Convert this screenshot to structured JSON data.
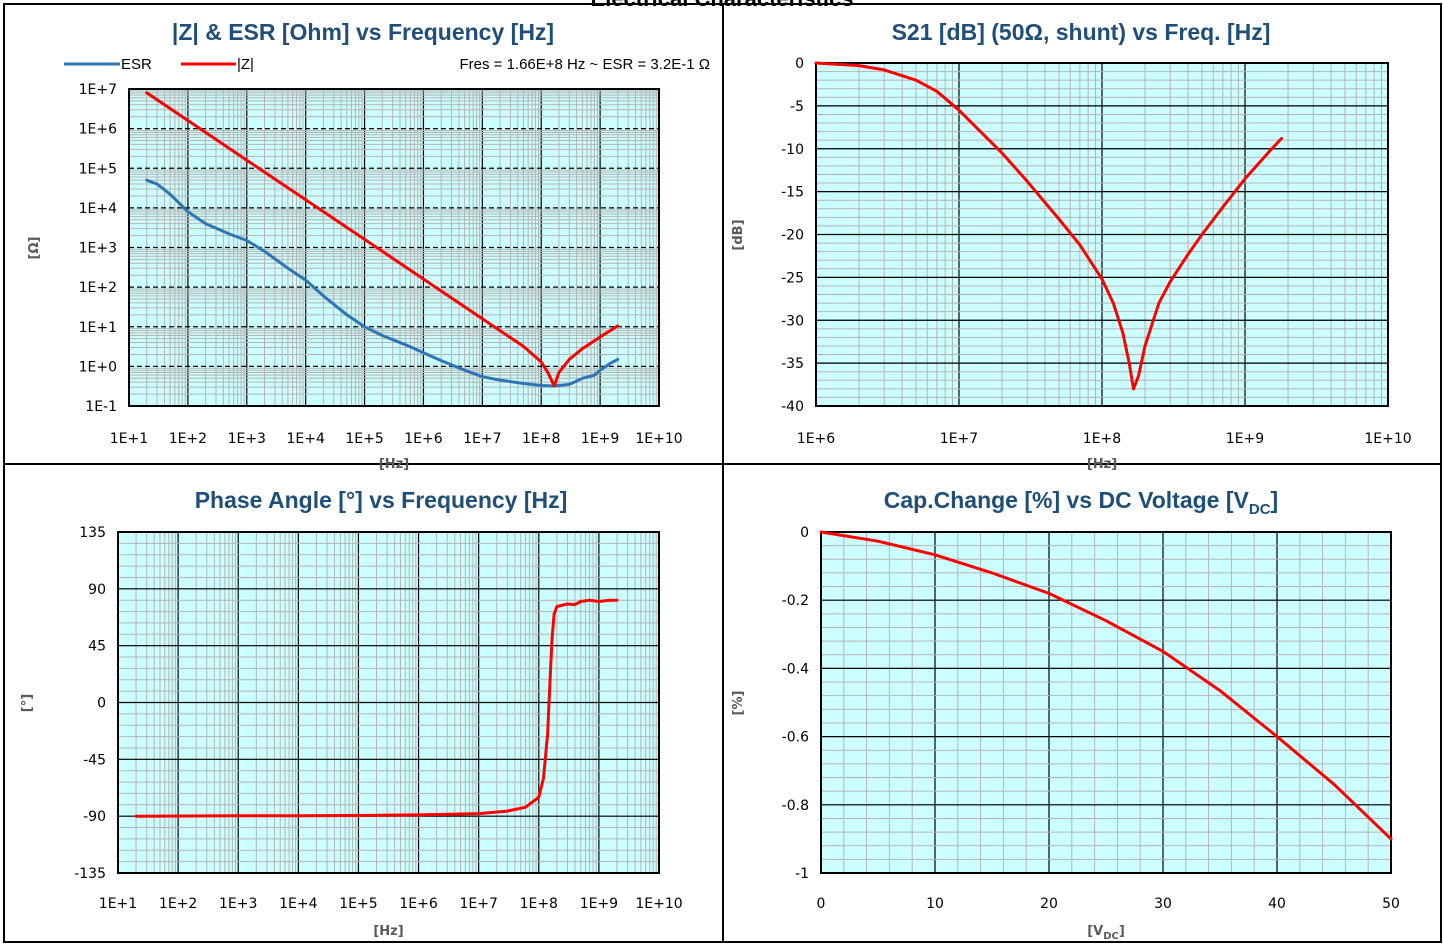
{
  "page_title": "Electrical Characteristics",
  "colors": {
    "title": "#1f4e79",
    "plot_bg": "#ccffff",
    "esr": "#2e75b6",
    "z": "#ff0000",
    "grid_minor": "#b4b4b4",
    "grid_major": "#000000"
  },
  "chart_data": [
    {
      "type": "line",
      "title": "|Z| & ESR [Ohm] vs Frequency [Hz]",
      "xlabel": "[Hz]",
      "ylabel": "[Ω]",
      "xscale": "log",
      "yscale": "log",
      "xlim": [
        10,
        10000000000.0
      ],
      "ylim": [
        0.1,
        10000000.0
      ],
      "xticks": [
        "1E+1",
        "1E+2",
        "1E+3",
        "1E+4",
        "1E+5",
        "1E+6",
        "1E+7",
        "1E+8",
        "1E+9",
        "1E+10"
      ],
      "yticks": [
        "1E-1",
        "1E+0",
        "1E+1",
        "1E+2",
        "1E+3",
        "1E+4",
        "1E+5",
        "1E+6",
        "1E+7"
      ],
      "grid": true,
      "legend": "top",
      "annotation": "Fres = 1.66E+8 Hz ~ ESR = 3.2E-1 Ω",
      "series": [
        {
          "name": "ESR",
          "color": "#2e75b6",
          "x": [
            20,
            30,
            50,
            100,
            200,
            500,
            1000,
            2000,
            5000,
            10000,
            20000,
            50000,
            100000,
            200000,
            500000,
            1000000.0,
            2000000.0,
            5000000.0,
            10000000.0,
            20000000.0,
            50000000.0,
            100000000.0,
            166000000.0,
            200000000.0,
            300000000.0,
            500000000.0,
            800000000.0,
            1000000000.0,
            1500000000.0,
            2000000000.0
          ],
          "y": [
            50000,
            40000,
            22000,
            8000,
            4000,
            2200,
            1500,
            800,
            300,
            150,
            60,
            20,
            10,
            6,
            3.5,
            2.2,
            1.4,
            0.8,
            0.55,
            0.45,
            0.37,
            0.33,
            0.32,
            0.33,
            0.35,
            0.5,
            0.6,
            0.8,
            1.2,
            1.5
          ]
        },
        {
          "name": "|Z|",
          "color": "#ff0000",
          "x": [
            20,
            100.0,
            1000.0,
            10000.0,
            100000.0,
            1000000.0,
            10000000.0,
            50000000.0,
            100000000.0,
            130000000.0,
            166000000.0,
            200000000.0,
            300000000.0,
            500000000.0,
            1000000000.0,
            2000000000.0
          ],
          "y": [
            8000000,
            1600000,
            160000,
            16000,
            1600,
            160,
            16,
            3.2,
            1.3,
            0.7,
            0.32,
            0.7,
            1.5,
            2.8,
            5.5,
            10.5
          ]
        }
      ]
    },
    {
      "type": "line",
      "title": "S21 [dB] (50Ω, shunt) vs Freq. [Hz]",
      "xlabel": "[Hz]",
      "ylabel": "[dB]",
      "xscale": "log",
      "xlim": [
        1000000.0,
        10000000000.0
      ],
      "ylim": [
        -40,
        0
      ],
      "xticks": [
        "1E+6",
        "1E+7",
        "1E+8",
        "1E+9",
        "1E+10"
      ],
      "yticks": [
        "0",
        "-5",
        "-10",
        "-15",
        "-20",
        "-25",
        "-30",
        "-35",
        "-40"
      ],
      "grid": true,
      "series": [
        {
          "color": "#ff0000",
          "x": [
            1000000.0,
            2000000.0,
            3000000.0,
            5000000.0,
            7000000.0,
            10000000.0,
            20000000.0,
            30000000.0,
            50000000.0,
            70000000.0,
            100000000.0,
            120000000.0,
            140000000.0,
            155000000.0,
            166000000.0,
            180000000.0,
            200000000.0,
            250000000.0,
            300000000.0,
            400000000.0,
            500000000.0,
            700000000.0,
            1000000000.0,
            1500000000.0,
            1800000000.0
          ],
          "y": [
            0,
            -0.3,
            -0.8,
            -2,
            -3.3,
            -5.5,
            -10.5,
            -13.8,
            -18.2,
            -21.2,
            -25.2,
            -28,
            -31.5,
            -35,
            -38,
            -36.5,
            -33,
            -28,
            -25.5,
            -22.3,
            -20,
            -16.8,
            -13.5,
            -10.2,
            -8.8
          ]
        }
      ]
    },
    {
      "type": "line",
      "title": "Phase Angle [°] vs Frequency [Hz]",
      "xlabel": "[Hz]",
      "ylabel": "[°]",
      "xscale": "log",
      "xlim": [
        10,
        10000000000.0
      ],
      "ylim": [
        -135,
        135
      ],
      "xticks": [
        "1E+1",
        "1E+2",
        "1E+3",
        "1E+4",
        "1E+5",
        "1E+6",
        "1E+7",
        "1E+8",
        "1E+9",
        "1E+10"
      ],
      "yticks": [
        "135",
        "90",
        "45",
        "0",
        "-45",
        "-90",
        "-135"
      ],
      "grid": true,
      "series": [
        {
          "color": "#ff0000",
          "x": [
            20,
            1000.0,
            10000.0,
            100000.0,
            1000000.0,
            10000000.0,
            30000000.0,
            60000000.0,
            100000000.0,
            120000000.0,
            140000000.0,
            155000000.0,
            166000000.0,
            180000000.0,
            200000000.0,
            300000000.0,
            400000000.0,
            500000000.0,
            700000000.0,
            1000000000.0,
            1500000000.0,
            2000000000.0
          ],
          "y": [
            -90,
            -89.7,
            -89.6,
            -89.5,
            -89,
            -88,
            -86,
            -83,
            -75,
            -60,
            -25,
            20,
            50,
            70,
            76,
            78,
            77.5,
            80,
            81,
            80,
            81,
            81
          ]
        }
      ]
    },
    {
      "type": "line",
      "title": "Cap.Change [%] vs DC Voltage [VDC]",
      "title_main": "Cap.Change [%] vs DC Voltage [V",
      "title_sub": "DC",
      "title_end": "]",
      "xlabel_main": "[V",
      "xlabel_sub": "DC",
      "xlabel_end": "]",
      "ylabel": "[%]",
      "xlim": [
        0,
        50
      ],
      "ylim": [
        -1,
        0
      ],
      "xticks": [
        "0",
        "10",
        "20",
        "30",
        "40",
        "50"
      ],
      "yticks": [
        "0",
        "-0.2",
        "-0.4",
        "-0.6",
        "-0.8",
        "-1"
      ],
      "grid": true,
      "series": [
        {
          "color": "#ff0000",
          "x": [
            0,
            5,
            10,
            15,
            20,
            25,
            30,
            35,
            40,
            45,
            50
          ],
          "y": [
            0,
            -0.027,
            -0.067,
            -0.12,
            -0.18,
            -0.26,
            -0.35,
            -0.465,
            -0.6,
            -0.74,
            -0.9
          ]
        }
      ]
    }
  ]
}
